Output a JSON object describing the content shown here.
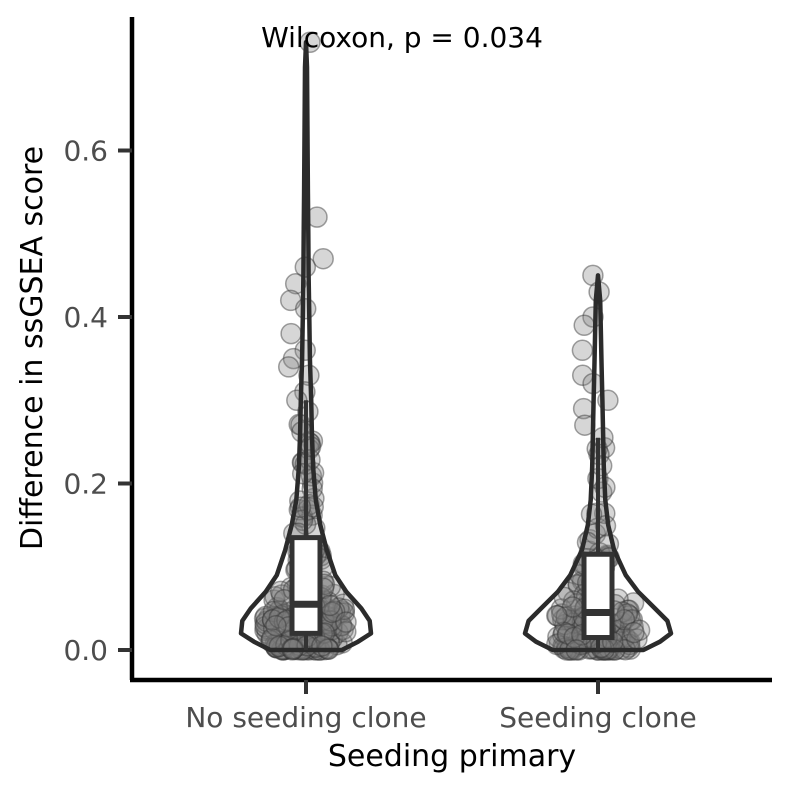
{
  "chart_data": {
    "type": "violin",
    "annotation": "Wilcoxon, p = 0.034",
    "xlabel": "Seeding primary",
    "ylabel": "Difference in ssGSEA score",
    "ylim": [
      -0.04,
      0.74
    ],
    "yticks": [
      {
        "value": 0.0,
        "label": "0.0"
      },
      {
        "value": 0.2,
        "label": "0.2"
      },
      {
        "value": 0.4,
        "label": "0.4"
      },
      {
        "value": 0.6,
        "label": "0.6"
      }
    ],
    "categories": [
      "No seeding clone",
      "Seeding clone"
    ],
    "groups": [
      {
        "category": "No seeding clone",
        "min": 0.0,
        "max": 0.73,
        "box": {
          "q1": 0.02,
          "median": 0.055,
          "q3": 0.135,
          "whisker_high": 0.3
        },
        "outliers": [
          0.73,
          0.52,
          0.47,
          0.46,
          0.44,
          0.42,
          0.41,
          0.38,
          0.36,
          0.35,
          0.34,
          0.33,
          0.31,
          0.3
        ],
        "violin_density": [
          [
            0.0,
            0.55
          ],
          [
            0.01,
            0.8
          ],
          [
            0.02,
            1.0
          ],
          [
            0.035,
            0.98
          ],
          [
            0.05,
            0.85
          ],
          [
            0.07,
            0.62
          ],
          [
            0.09,
            0.45
          ],
          [
            0.12,
            0.32
          ],
          [
            0.15,
            0.22
          ],
          [
            0.18,
            0.15
          ],
          [
            0.22,
            0.11
          ],
          [
            0.26,
            0.09
          ],
          [
            0.3,
            0.08
          ],
          [
            0.35,
            0.06
          ],
          [
            0.4,
            0.05
          ],
          [
            0.45,
            0.04
          ],
          [
            0.5,
            0.035
          ],
          [
            0.55,
            0.03
          ],
          [
            0.6,
            0.025
          ],
          [
            0.65,
            0.02
          ],
          [
            0.7,
            0.015
          ],
          [
            0.73,
            0.0
          ]
        ]
      },
      {
        "category": "Seeding clone",
        "min": 0.0,
        "max": 0.45,
        "box": {
          "q1": 0.015,
          "median": 0.045,
          "q3": 0.115,
          "whisker_high": 0.255
        },
        "outliers": [
          0.45,
          0.43,
          0.4,
          0.39,
          0.36,
          0.33,
          0.32,
          0.3,
          0.29,
          0.27
        ],
        "violin_density": [
          [
            0.0,
            0.62
          ],
          [
            0.01,
            0.85
          ],
          [
            0.02,
            1.0
          ],
          [
            0.035,
            0.95
          ],
          [
            0.05,
            0.78
          ],
          [
            0.07,
            0.55
          ],
          [
            0.09,
            0.38
          ],
          [
            0.12,
            0.22
          ],
          [
            0.15,
            0.14
          ],
          [
            0.18,
            0.1
          ],
          [
            0.22,
            0.08
          ],
          [
            0.26,
            0.07
          ],
          [
            0.3,
            0.06
          ],
          [
            0.34,
            0.05
          ],
          [
            0.38,
            0.04
          ],
          [
            0.42,
            0.03
          ],
          [
            0.45,
            0.0
          ]
        ]
      }
    ],
    "point_color": "#7f7f7f"
  }
}
